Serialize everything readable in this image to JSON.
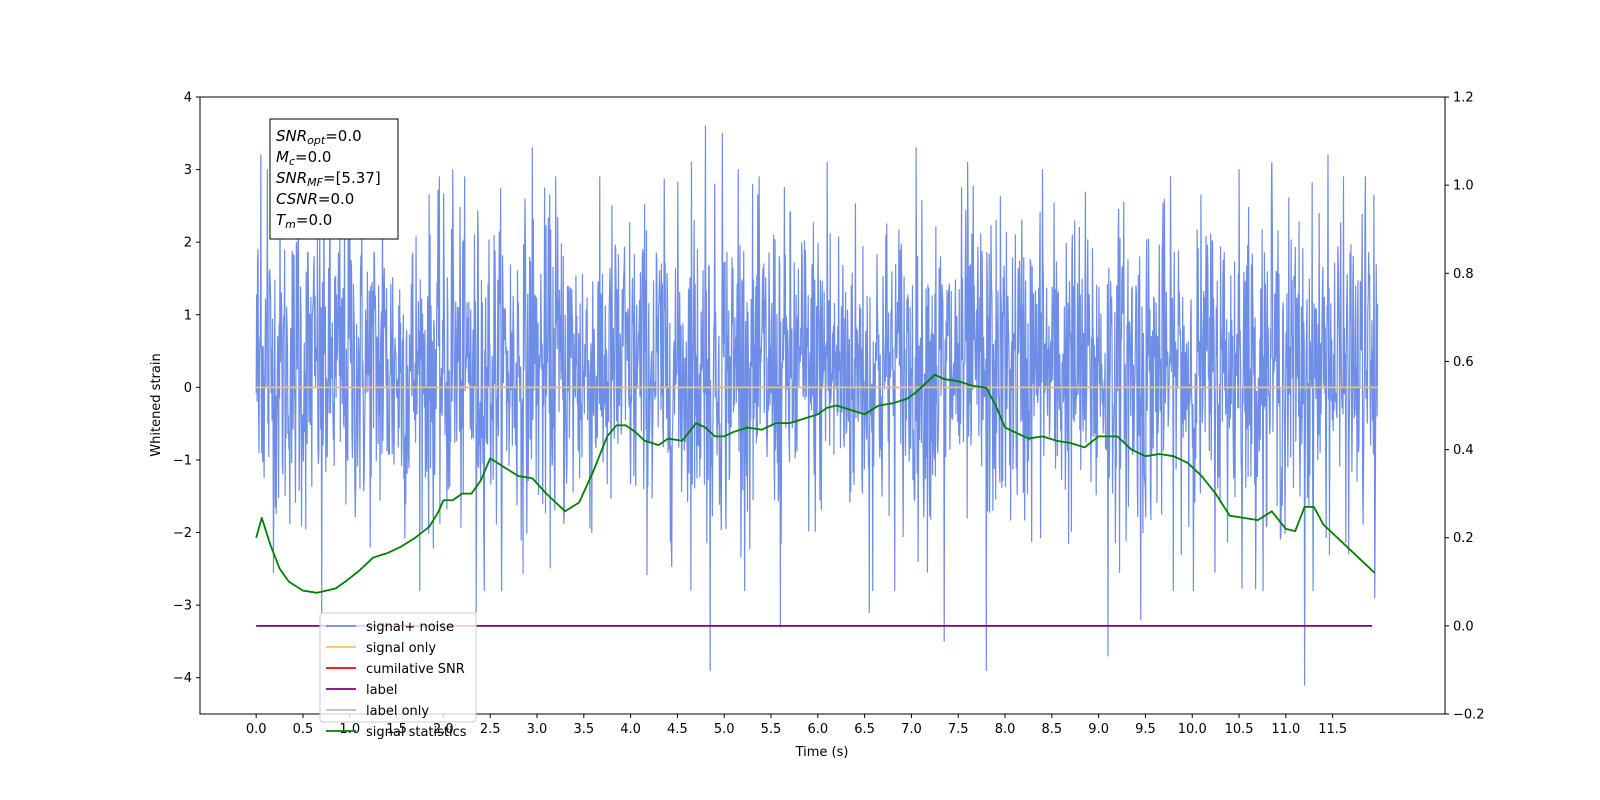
{
  "chart_data": {
    "type": "line",
    "xlabel": "Time (s)",
    "ylabel": "Whitened strain",
    "xlim": [
      -0.6,
      12.7
    ],
    "ylim": [
      -4.5,
      4
    ],
    "y2lim": [
      -0.2,
      1.2
    ],
    "x_ticks": [
      0.0,
      0.5,
      1.0,
      1.5,
      2.0,
      2.5,
      3.0,
      3.5,
      4.0,
      4.5,
      5.0,
      5.5,
      6.0,
      6.5,
      7.0,
      7.5,
      8.0,
      8.5,
      9.0,
      9.5,
      10.0,
      10.5,
      11.0,
      11.5
    ],
    "y_ticks": [
      -4,
      -3,
      -2,
      -1,
      0,
      1,
      2,
      3,
      4
    ],
    "y2_ticks": [
      -0.2,
      0.0,
      0.2,
      0.4,
      0.6,
      0.8,
      1.0,
      1.2
    ],
    "grid": false,
    "legend_position": "lower-left",
    "legend": [
      {
        "label": "signal+ noise",
        "color": "#6e8de6"
      },
      {
        "label": "signal only",
        "color": "#ffbe5e"
      },
      {
        "label": "cumilative SNR",
        "color": "#ff0000"
      },
      {
        "label": "label",
        "color": "#800080"
      },
      {
        "label": "label only",
        "color": "#bbbbbb"
      },
      {
        "label": "signal statistics",
        "color": "#008000"
      }
    ],
    "annotation": {
      "lines": [
        {
          "name": "SNR",
          "sub": "opt",
          "value": "=0.0"
        },
        {
          "name": "M",
          "sub": "c",
          "value": "=0.0"
        },
        {
          "name": "SNR",
          "sub": "MF",
          "value": "=[5.37]"
        },
        {
          "name": "CSNR",
          "sub": "",
          "value": "=0.0"
        },
        {
          "name": "T",
          "sub": "m",
          "value": "=0.0"
        }
      ]
    },
    "series": [
      {
        "name": "signal+ noise",
        "color": "#6e8de6",
        "axis": "left",
        "noise": {
          "x_start": 0.0,
          "x_end": 11.98,
          "n": 2400,
          "mean": 0.25,
          "typical_band": [
            -2.0,
            2.5
          ],
          "spikes": [
            {
              "x": 0.02,
              "y": 1.9
            },
            {
              "x": 0.03,
              "y": -0.9
            },
            {
              "x": 0.05,
              "y": 3.2
            },
            {
              "x": 0.12,
              "y": 3.0
            },
            {
              "x": 0.45,
              "y": 2.8
            },
            {
              "x": 0.7,
              "y": -3.1
            },
            {
              "x": 1.0,
              "y": 3.1
            },
            {
              "x": 1.35,
              "y": 3.0
            },
            {
              "x": 2.1,
              "y": 3.0
            },
            {
              "x": 2.35,
              "y": -3.1
            },
            {
              "x": 2.95,
              "y": 3.3
            },
            {
              "x": 3.2,
              "y": 2.9
            },
            {
              "x": 4.65,
              "y": 3.1
            },
            {
              "x": 4.8,
              "y": 3.6
            },
            {
              "x": 4.85,
              "y": -3.9
            },
            {
              "x": 4.98,
              "y": 3.5
            },
            {
              "x": 5.15,
              "y": 3.0
            },
            {
              "x": 5.6,
              "y": -3.3
            },
            {
              "x": 6.1,
              "y": 3.1
            },
            {
              "x": 6.55,
              "y": -3.1
            },
            {
              "x": 7.05,
              "y": 3.3
            },
            {
              "x": 7.35,
              "y": -3.5
            },
            {
              "x": 7.6,
              "y": 3.1
            },
            {
              "x": 7.8,
              "y": -3.9
            },
            {
              "x": 8.4,
              "y": 3.0
            },
            {
              "x": 9.1,
              "y": -3.7
            },
            {
              "x": 9.45,
              "y": -3.2
            },
            {
              "x": 10.5,
              "y": 3.0
            },
            {
              "x": 10.85,
              "y": 3.1
            },
            {
              "x": 11.2,
              "y": -4.1
            },
            {
              "x": 11.45,
              "y": 3.2
            },
            {
              "x": 11.85,
              "y": 2.9
            },
            {
              "x": 11.95,
              "y": -2.9
            }
          ]
        }
      },
      {
        "name": "signal only",
        "color": "#ffbe5e",
        "axis": "left",
        "x": [
          0.0,
          11.98
        ],
        "y": [
          0.0,
          0.0
        ]
      },
      {
        "name": "label",
        "color": "#800080",
        "axis": "right",
        "x": [
          0.0,
          11.92
        ],
        "y": [
          0.0,
          0.0
        ]
      },
      {
        "name": "signal statistics",
        "color": "#008000",
        "axis": "right",
        "x": [
          0.0,
          0.06,
          0.15,
          0.25,
          0.35,
          0.5,
          0.65,
          0.75,
          0.85,
          0.95,
          1.1,
          1.25,
          1.4,
          1.55,
          1.7,
          1.85,
          1.95,
          2.0,
          2.1,
          2.2,
          2.3,
          2.4,
          2.5,
          2.65,
          2.8,
          2.95,
          3.1,
          3.3,
          3.45,
          3.6,
          3.75,
          3.85,
          3.95,
          4.05,
          4.15,
          4.3,
          4.4,
          4.55,
          4.7,
          4.8,
          4.9,
          5.0,
          5.1,
          5.25,
          5.4,
          5.55,
          5.7,
          5.85,
          6.0,
          6.1,
          6.2,
          6.35,
          6.5,
          6.65,
          6.8,
          6.95,
          7.05,
          7.15,
          7.25,
          7.35,
          7.5,
          7.65,
          7.8,
          7.9,
          8.0,
          8.1,
          8.25,
          8.4,
          8.55,
          8.7,
          8.85,
          9.0,
          9.1,
          9.2,
          9.35,
          9.5,
          9.65,
          9.8,
          9.95,
          10.1,
          10.25,
          10.4,
          10.55,
          10.7,
          10.85,
          11.0,
          11.1,
          11.2,
          11.3,
          11.4,
          11.55,
          11.7,
          11.85,
          11.95
        ],
        "y": [
          0.2,
          0.245,
          0.185,
          0.13,
          0.1,
          0.08,
          0.075,
          0.08,
          0.085,
          0.1,
          0.125,
          0.155,
          0.165,
          0.18,
          0.2,
          0.225,
          0.26,
          0.285,
          0.285,
          0.3,
          0.3,
          0.33,
          0.38,
          0.36,
          0.34,
          0.335,
          0.3,
          0.26,
          0.28,
          0.35,
          0.43,
          0.455,
          0.455,
          0.44,
          0.42,
          0.41,
          0.425,
          0.42,
          0.46,
          0.45,
          0.43,
          0.43,
          0.44,
          0.45,
          0.445,
          0.46,
          0.46,
          0.47,
          0.48,
          0.495,
          0.5,
          0.49,
          0.48,
          0.5,
          0.505,
          0.515,
          0.53,
          0.55,
          0.57,
          0.56,
          0.555,
          0.545,
          0.54,
          0.5,
          0.45,
          0.44,
          0.425,
          0.43,
          0.42,
          0.415,
          0.405,
          0.43,
          0.43,
          0.43,
          0.4,
          0.385,
          0.39,
          0.385,
          0.37,
          0.34,
          0.3,
          0.25,
          0.245,
          0.24,
          0.26,
          0.22,
          0.215,
          0.27,
          0.27,
          0.23,
          0.2,
          0.17,
          0.14,
          0.12
        ]
      }
    ]
  }
}
